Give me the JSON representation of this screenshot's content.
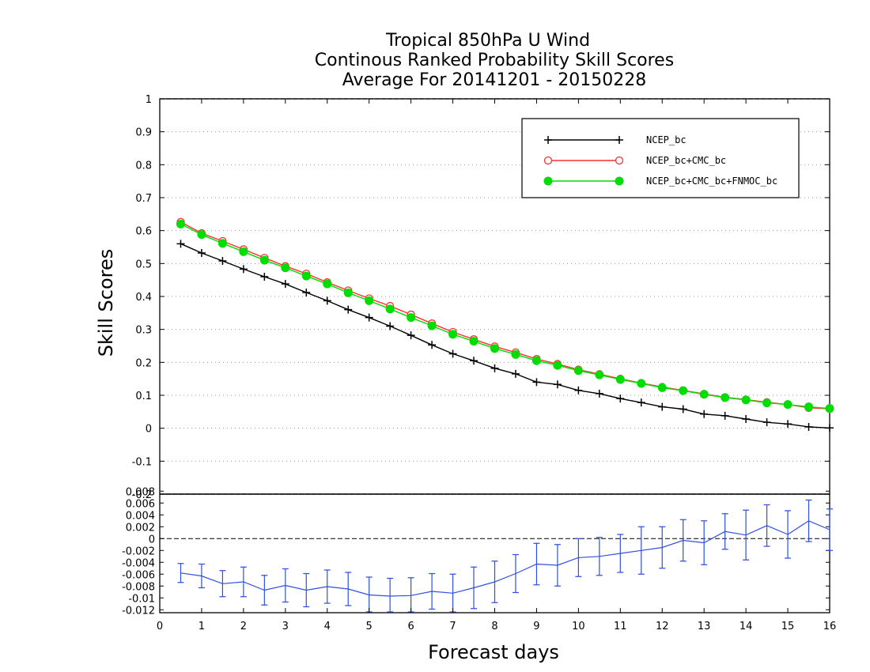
{
  "chart_data": [
    {
      "type": "line",
      "title": [
        "Tropical 850hPa U Wind",
        "Continous Ranked Probability Skill Scores",
        "Average For 20141201 - 20150228"
      ],
      "xlabel": "Forecast days",
      "ylabel": "Skill Scores",
      "xlim": [
        0,
        16
      ],
      "ylim": [
        -0.2,
        1
      ],
      "x_ticks": [
        "0",
        "1",
        "2",
        "3",
        "4",
        "5",
        "6",
        "7",
        "8",
        "9",
        "10",
        "11",
        "12",
        "13",
        "14",
        "15",
        "16"
      ],
      "y_ticks": [
        "-0.2",
        "-0.1",
        "0",
        "0.1",
        "0.2",
        "0.3",
        "0.4",
        "0.5",
        "0.6",
        "0.7",
        "0.8",
        "0.9",
        "1"
      ],
      "grid": "horizontal dotted",
      "legend_position": "top-right",
      "x": [
        0.5,
        1,
        1.5,
        2,
        2.5,
        3,
        3.5,
        4,
        4.5,
        5,
        5.5,
        6,
        6.5,
        7,
        7.5,
        8,
        8.5,
        9,
        9.5,
        10,
        10.5,
        11,
        11.5,
        12,
        12.5,
        13,
        13.5,
        14,
        14.5,
        15,
        15.5,
        16
      ],
      "series": [
        {
          "name": "NCEP_bc",
          "color": "#000000",
          "marker": "plus",
          "values": [
            0.56,
            0.532,
            0.508,
            0.483,
            0.46,
            0.438,
            0.412,
            0.387,
            0.36,
            0.336,
            0.31,
            0.282,
            0.253,
            0.226,
            0.205,
            0.182,
            0.165,
            0.14,
            0.133,
            0.115,
            0.105,
            0.09,
            0.078,
            0.065,
            0.058,
            0.043,
            0.038,
            0.028,
            0.018,
            0.013,
            0.004,
            0.001
          ]
        },
        {
          "name": "NCEP_bc+CMC_bc",
          "color": "#ff3030",
          "marker": "open-circle",
          "values": [
            0.626,
            0.592,
            0.568,
            0.543,
            0.517,
            0.492,
            0.469,
            0.443,
            0.418,
            0.394,
            0.371,
            0.345,
            0.318,
            0.292,
            0.27,
            0.248,
            0.23,
            0.21,
            0.195,
            0.178,
            0.164,
            0.15,
            0.137,
            0.125,
            0.115,
            0.104,
            0.094,
            0.087,
            0.079,
            0.072,
            0.062,
            0.059
          ]
        },
        {
          "name": "NCEP_bc+CMC_bc+FNMOC_bc",
          "color": "#00dd00",
          "marker": "filled-circle",
          "values": [
            0.62,
            0.588,
            0.561,
            0.536,
            0.51,
            0.487,
            0.462,
            0.438,
            0.411,
            0.387,
            0.362,
            0.336,
            0.311,
            0.285,
            0.264,
            0.242,
            0.224,
            0.205,
            0.191,
            0.175,
            0.162,
            0.148,
            0.136,
            0.123,
            0.114,
            0.103,
            0.093,
            0.086,
            0.077,
            0.072,
            0.065,
            0.06
          ]
        }
      ]
    },
    {
      "type": "line",
      "xlim": [
        0,
        16
      ],
      "ylim": [
        -0.0125,
        0.0075
      ],
      "y_ticks": [
        "-0.012",
        "-0.01",
        "-0.008",
        "-0.006",
        "-0.004",
        "-0.002",
        "0",
        "0.002",
        "0.004",
        "0.006",
        "0.008"
      ],
      "zero_line": "dashed",
      "x": [
        0.5,
        1,
        1.5,
        2,
        2.5,
        3,
        3.5,
        4,
        4.5,
        5,
        5.5,
        6,
        6.5,
        7,
        7.5,
        8,
        8.5,
        9,
        9.5,
        10,
        10.5,
        11,
        11.5,
        12,
        12.5,
        13,
        13.5,
        14,
        14.5,
        15,
        15.5,
        16
      ],
      "series": [
        {
          "color": "#3050e0",
          "error_bars": true,
          "values": [
            -0.0058,
            -0.0063,
            -0.0076,
            -0.0073,
            -0.0087,
            -0.0079,
            -0.0087,
            -0.0081,
            -0.0085,
            -0.0095,
            -0.0097,
            -0.0096,
            -0.0089,
            -0.0092,
            -0.0083,
            -0.0073,
            -0.0059,
            -0.0043,
            -0.0045,
            -0.0032,
            -0.003,
            -0.0025,
            -0.002,
            -0.0015,
            -0.0003,
            -0.0007,
            0.0012,
            0.0006,
            0.0022,
            0.0007,
            0.003,
            0.0015
          ],
          "errors": [
            0.0016,
            0.002,
            0.0022,
            0.0025,
            0.0025,
            0.0028,
            0.0028,
            0.0028,
            0.0028,
            0.003,
            0.003,
            0.003,
            0.003,
            0.0032,
            0.0035,
            0.0035,
            0.0032,
            0.0035,
            0.0035,
            0.0032,
            0.0032,
            0.0032,
            0.004,
            0.0035,
            0.0035,
            0.0037,
            0.003,
            0.0042,
            0.0035,
            0.004,
            0.0035,
            0.0035
          ]
        }
      ]
    }
  ]
}
